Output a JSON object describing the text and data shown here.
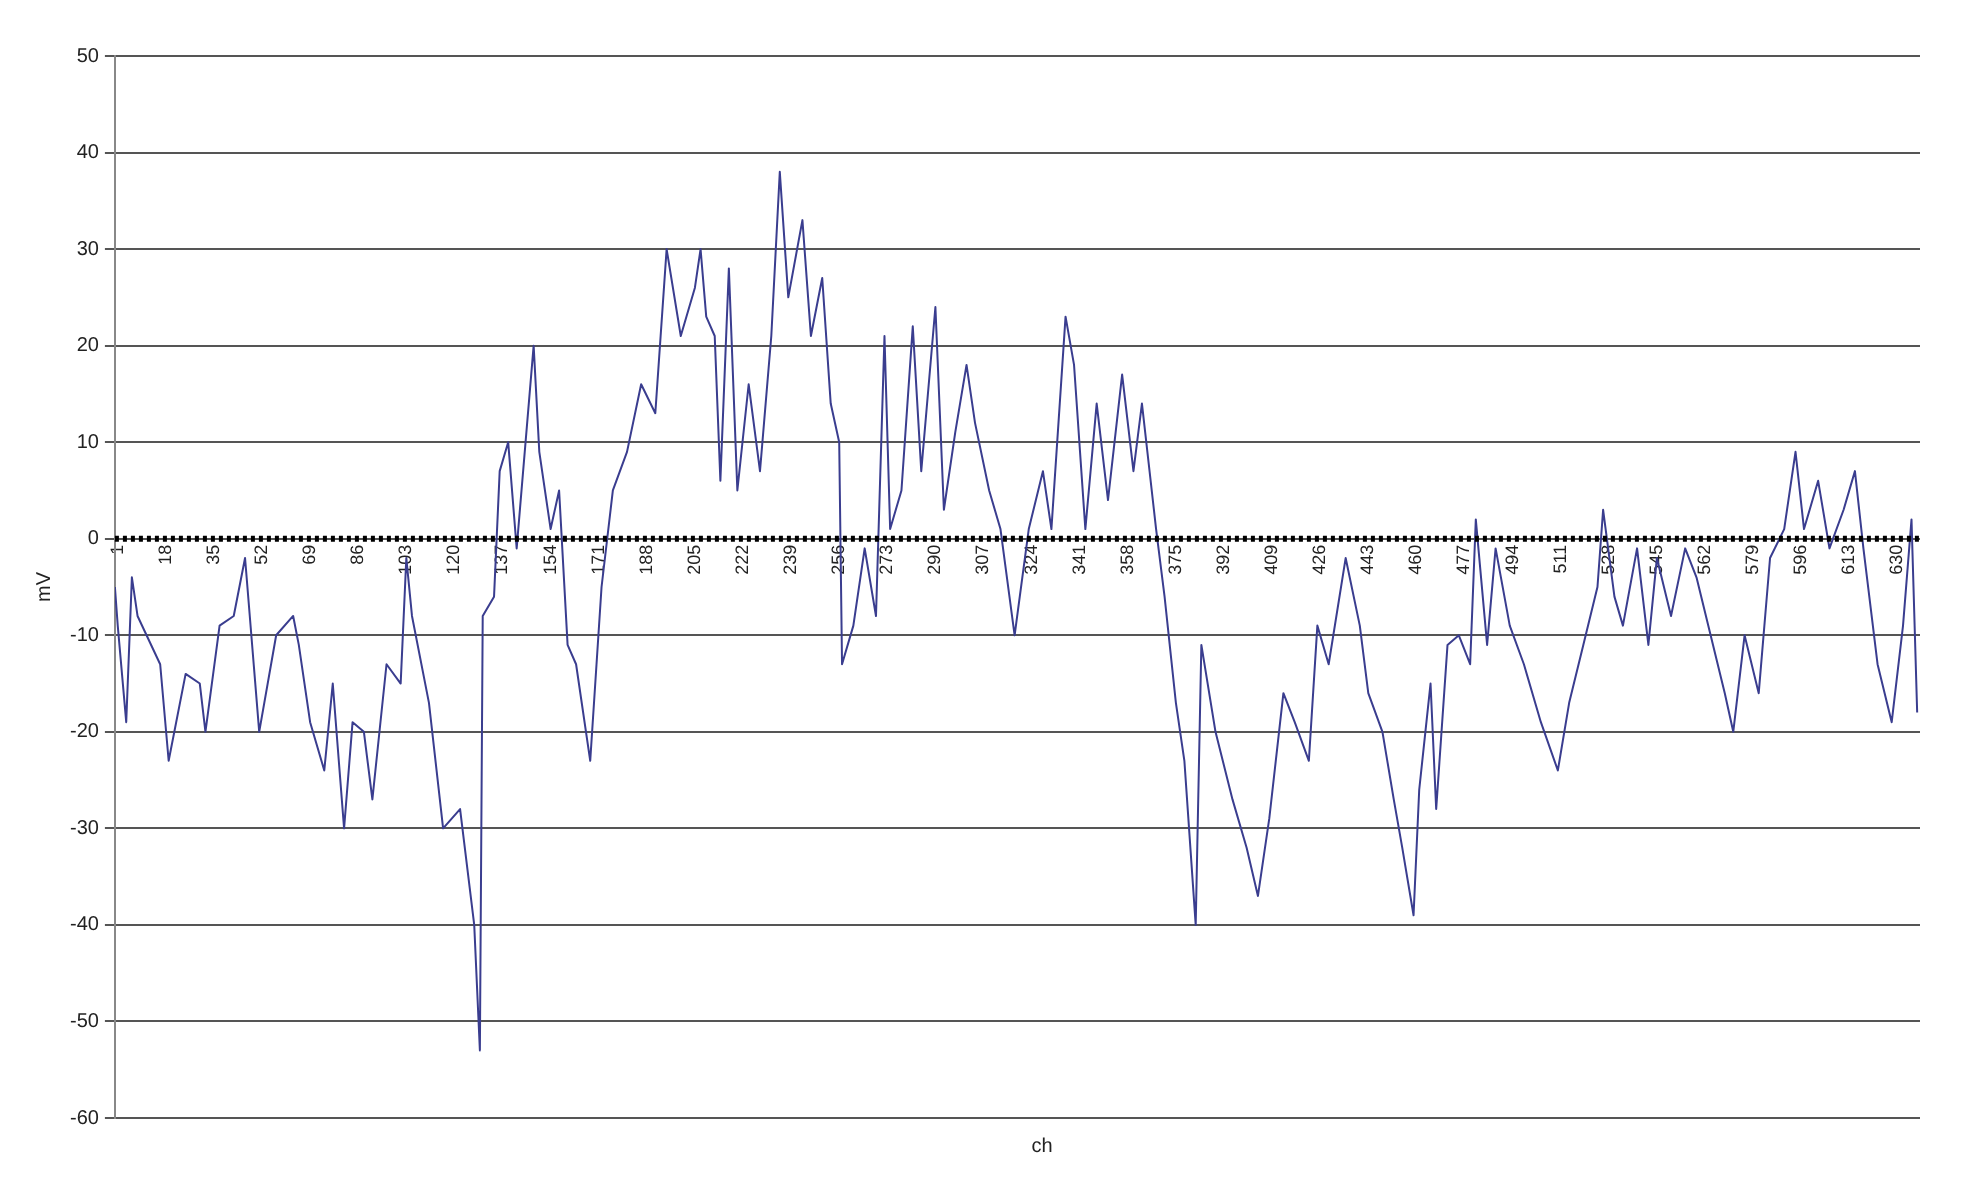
{
  "chart_data": {
    "type": "line",
    "xlabel": "ch",
    "ylabel": "mV",
    "xlim": [
      1,
      639
    ],
    "xticks": [
      1,
      18,
      35,
      52,
      69,
      86,
      103,
      120,
      137,
      154,
      171,
      188,
      205,
      222,
      239,
      256,
      273,
      290,
      307,
      324,
      341,
      358,
      375,
      392,
      409,
      426,
      443,
      460,
      477,
      494,
      511,
      528,
      545,
      562,
      579,
      596,
      613,
      630
    ],
    "ylim": [
      -60,
      50
    ],
    "yticks": [
      -60,
      -50,
      -40,
      -30,
      -20,
      -10,
      0,
      10,
      20,
      30,
      40,
      50
    ],
    "grid": "y",
    "legend": false,
    "marker": "none",
    "line_style": "solid",
    "ref_lines": [
      {
        "axis": "y",
        "value": 0,
        "color": "#000000",
        "line_style": "dotted"
      }
    ],
    "series": [
      {
        "color": "#3a3d8f",
        "x": [
          1,
          2,
          5,
          7,
          9,
          17,
          20,
          26,
          31,
          33,
          38,
          43,
          47,
          52,
          58,
          64,
          66,
          70,
          75,
          78,
          82,
          85,
          89,
          92,
          97,
          102,
          104,
          106,
          112,
          117,
          123,
          128,
          130,
          131,
          135,
          137,
          140,
          143,
          149,
          151,
          155,
          158,
          161,
          164,
          169,
          173,
          177,
          182,
          187,
          192,
          196,
          201,
          206,
          208,
          210,
          213,
          215,
          218,
          221,
          225,
          229,
          233,
          236,
          239,
          244,
          247,
          251,
          254,
          257,
          258,
          262,
          266,
          270,
          273,
          275,
          279,
          283,
          286,
          291,
          294,
          298,
          302,
          305,
          310,
          314,
          319,
          324,
          329,
          332,
          337,
          340,
          344,
          348,
          352,
          357,
          361,
          364,
          369,
          372,
          376,
          379,
          383,
          385,
          390,
          396,
          401,
          405,
          409,
          414,
          418,
          423,
          426,
          430,
          436,
          441,
          444,
          449,
          453,
          456,
          460,
          462,
          466,
          468,
          472,
          476,
          480,
          482,
          486,
          489,
          494,
          499,
          505,
          511,
          515,
          520,
          525,
          527,
          531,
          534,
          539,
          543,
          546,
          551,
          556,
          560,
          565,
          570,
          573,
          577,
          582,
          586,
          591,
          595,
          598,
          603,
          607,
          612,
          616,
          619,
          624,
          629,
          633,
          636,
          638
        ],
        "values": [
          -5,
          -9,
          -19,
          -4,
          -8,
          -13,
          -23,
          -14,
          -15,
          -20,
          -9,
          -8,
          -2,
          -20,
          -10,
          -8,
          -11,
          -19,
          -24,
          -15,
          -30,
          -19,
          -20,
          -27,
          -13,
          -15,
          -2,
          -8,
          -17,
          -30,
          -28,
          -40,
          -53,
          -8,
          -6,
          7,
          10,
          -1,
          20,
          9,
          1,
          5,
          -11,
          -13,
          -23,
          -5,
          5,
          9,
          16,
          13,
          30,
          21,
          26,
          30,
          23,
          21,
          6,
          28,
          5,
          16,
          7,
          21,
          38,
          25,
          33,
          21,
          27,
          14,
          10,
          -13,
          -9,
          -1,
          -8,
          21,
          1,
          5,
          22,
          7,
          24,
          3,
          11,
          18,
          12,
          5,
          1,
          -10,
          1,
          7,
          1,
          23,
          18,
          1,
          14,
          4,
          17,
          7,
          14,
          1,
          -6,
          -17,
          -23,
          -40,
          -11,
          -20,
          -27,
          -32,
          -37,
          -29,
          -16,
          -19,
          -23,
          -9,
          -13,
          -2,
          -9,
          -16,
          -20,
          -27,
          -32,
          -39,
          -26,
          -15,
          -28,
          -11,
          -10,
          -13,
          2,
          -11,
          -1,
          -9,
          -13,
          -19,
          -24,
          -17,
          -11,
          -5,
          3,
          -6,
          -9,
          -1,
          -11,
          -2,
          -8,
          -1,
          -4,
          -10,
          -16,
          -20,
          -10,
          -16,
          -2,
          1,
          9,
          1,
          6,
          -1,
          3,
          7,
          -1,
          -13,
          -19,
          -9,
          2,
          -18
        ]
      }
    ]
  }
}
